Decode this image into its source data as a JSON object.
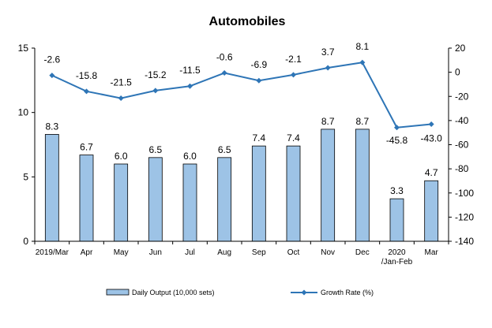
{
  "chart_data": {
    "type": "bar+line",
    "title": "Automobiles",
    "categories": [
      "2019/Mar",
      "Apr",
      "May",
      "Jun",
      "Jul",
      "Aug",
      "Sep",
      "Oct",
      "Nov",
      "Dec",
      "2020|/Jan-Feb",
      "Mar"
    ],
    "series": [
      {
        "name": "Daily Output (10,000 sets)",
        "type": "bar",
        "axis": "left",
        "color": "#9DC3E6",
        "values": [
          8.3,
          6.7,
          6.0,
          6.5,
          6.0,
          6.5,
          7.4,
          7.4,
          8.7,
          8.7,
          3.3,
          4.7
        ],
        "labels": [
          "8.3",
          "6.7",
          "6.0",
          "6.5",
          "6.0",
          "6.5",
          "7.4",
          "7.4",
          "8.7",
          "8.7",
          "3.3",
          "4.7"
        ]
      },
      {
        "name": "Growth Rate (%)",
        "type": "line",
        "axis": "right",
        "color": "#2E75B6",
        "values": [
          -2.6,
          -15.8,
          -21.5,
          -15.2,
          -11.5,
          -0.6,
          -6.9,
          -2.1,
          3.7,
          8.1,
          -45.8,
          -43.0
        ],
        "labels": [
          "-2.6",
          "-15.8",
          "-21.5",
          "-15.2",
          "-11.5",
          "-0.6",
          "-6.9",
          "-2.1",
          "3.7",
          "8.1",
          "-45.8",
          "-43.0"
        ]
      }
    ],
    "y_left": {
      "min": 0,
      "max": 15,
      "ticks": [
        0,
        5,
        10,
        15
      ],
      "tick_labels": [
        "0",
        "5",
        "10",
        "15"
      ]
    },
    "y_right": {
      "min": -140,
      "max": 20,
      "ticks": [
        20,
        0,
        -20,
        -40,
        -60,
        -80,
        -100,
        -120,
        -140
      ],
      "tick_labels": [
        "20",
        "0",
        "-20",
        "-40",
        "-60",
        "-80",
        "-100",
        "-120",
        "-140"
      ]
    },
    "grid": false,
    "legend_position": "bottom"
  }
}
